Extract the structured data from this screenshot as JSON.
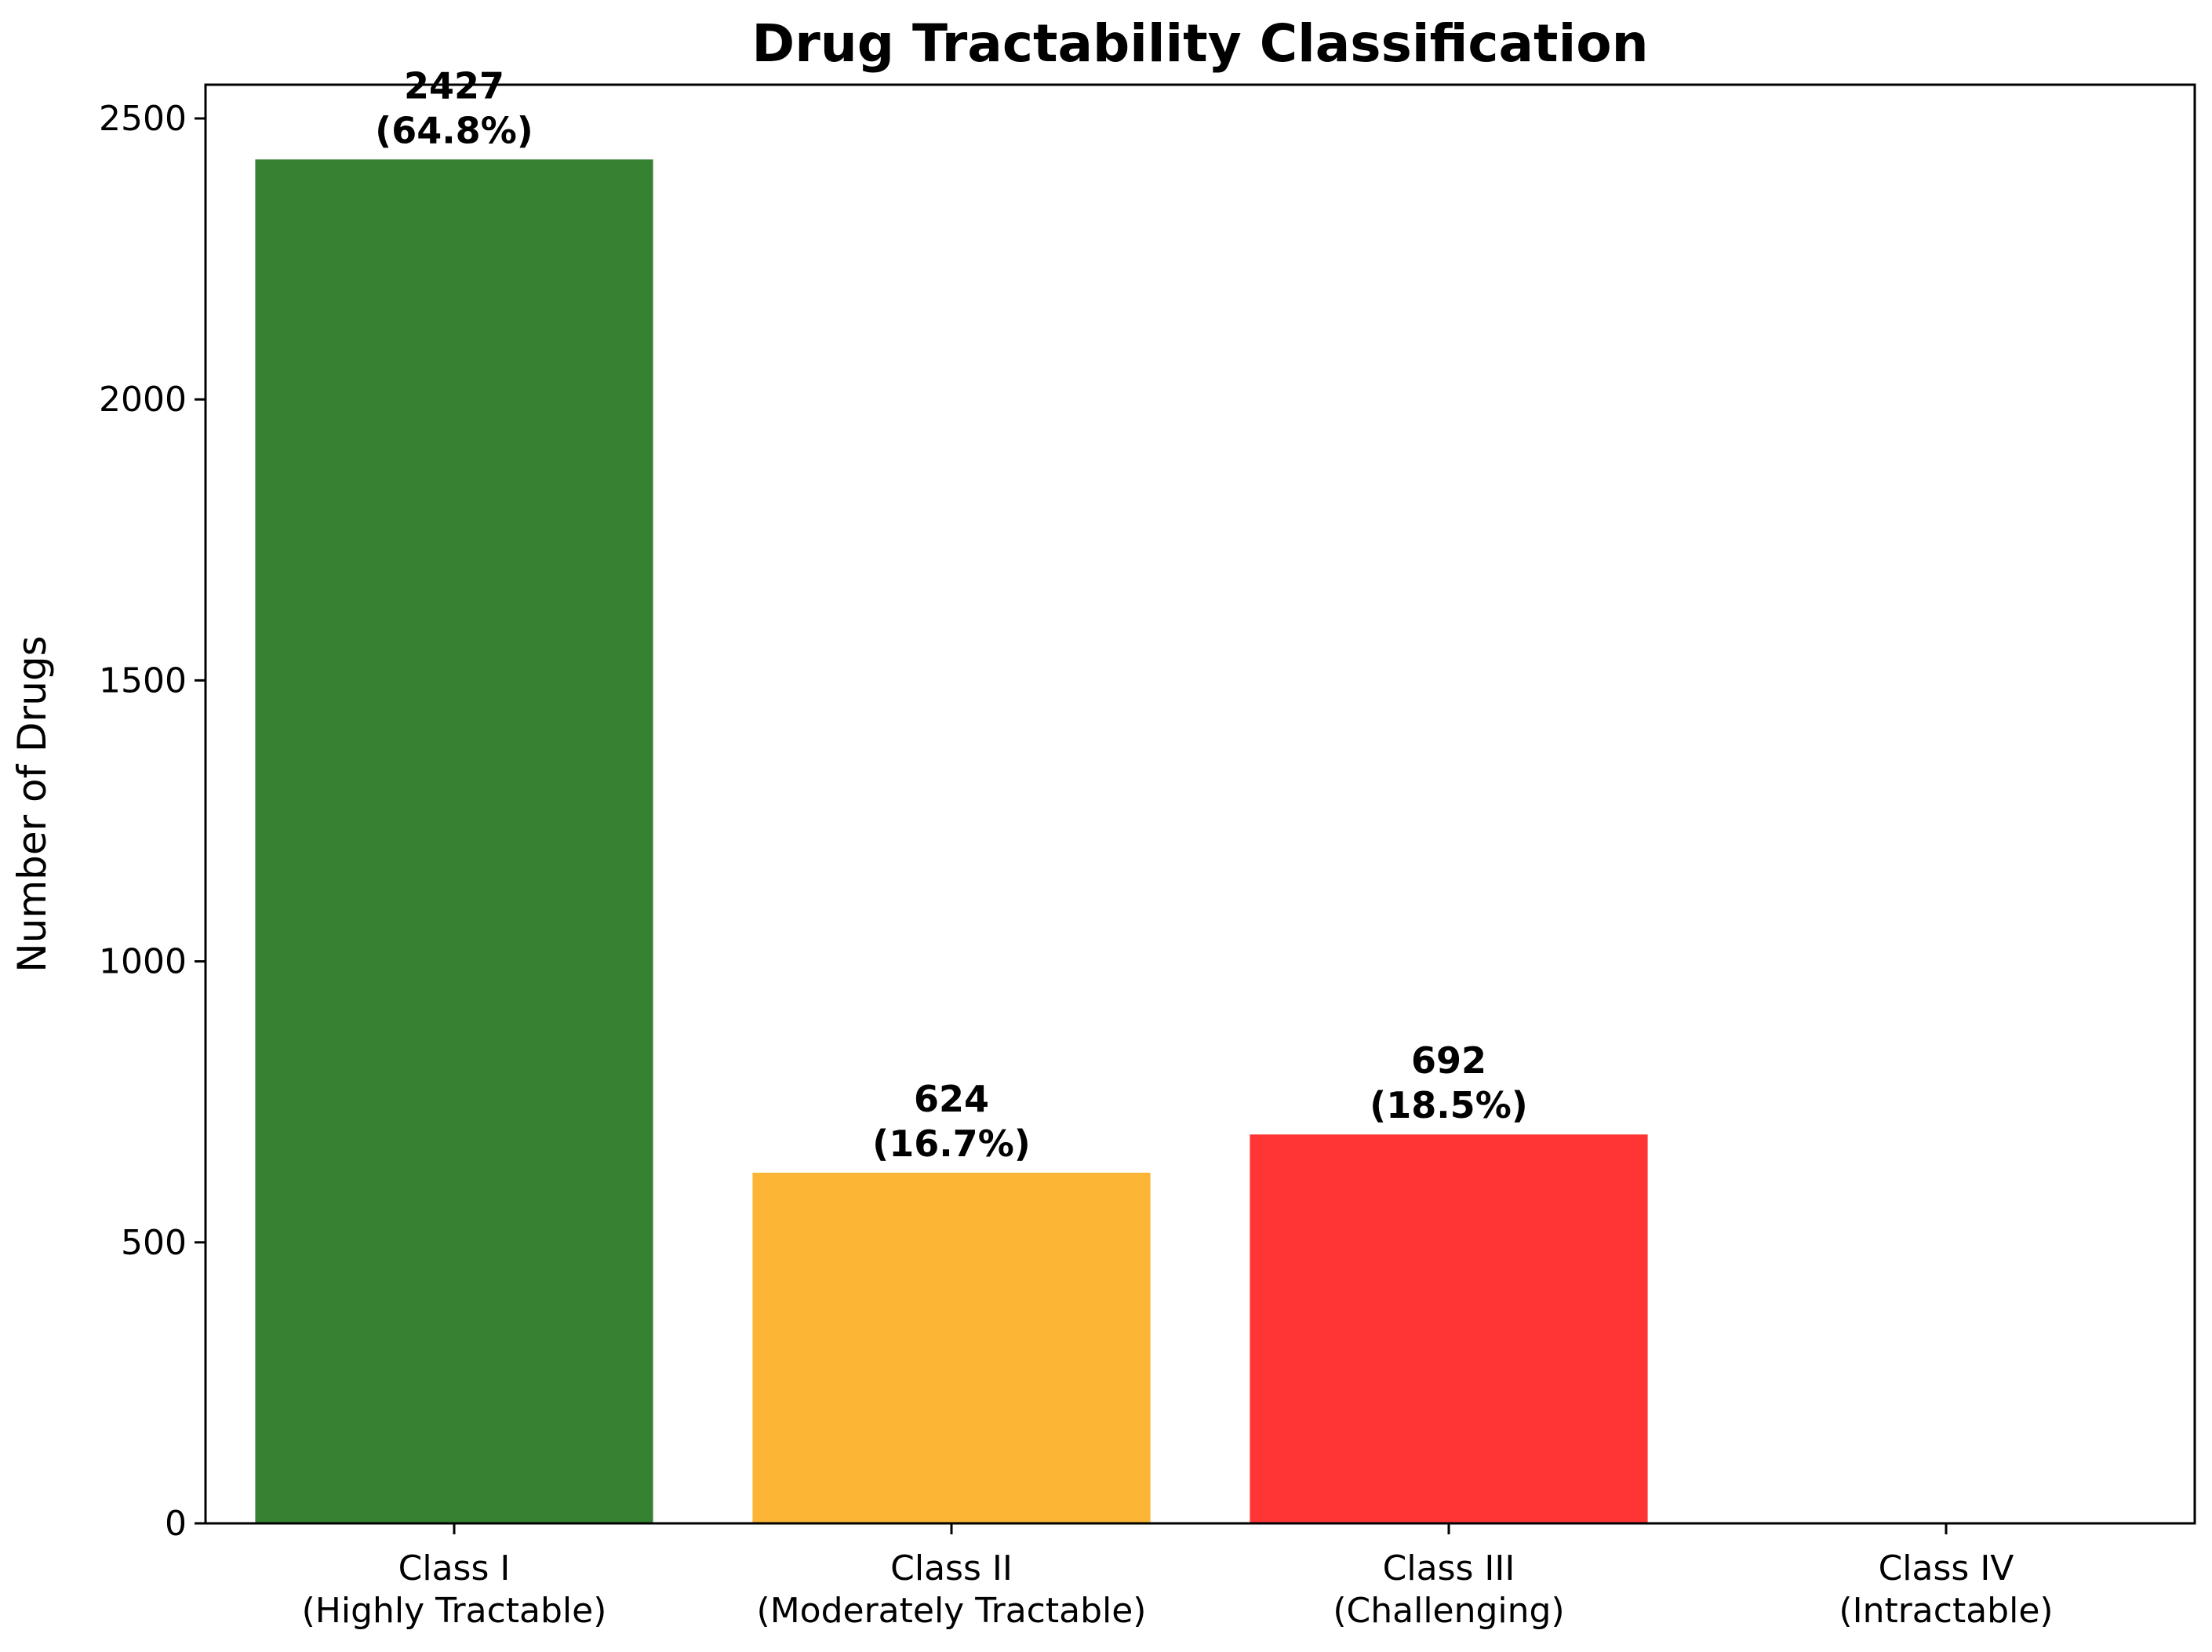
{
  "chart_data": {
    "type": "bar",
    "title": "Drug Tractability Classification",
    "xlabel": "",
    "ylabel": "Number of Drugs",
    "ylim": [
      0,
      2560
    ],
    "yticks": [
      0,
      500,
      1000,
      1500,
      2000,
      2500
    ],
    "grid": false,
    "legend": "none",
    "categories": [
      [
        "Class I",
        "(Highly Tractable)"
      ],
      [
        "Class II",
        "(Moderately Tractable)"
      ],
      [
        "Class III",
        "(Challenging)"
      ],
      [
        "Class IV",
        "(Intractable)"
      ]
    ],
    "values": [
      2427,
      624,
      692,
      0
    ],
    "data_labels": [
      [
        "2427",
        "(64.8%)"
      ],
      [
        "624",
        "(16.7%)"
      ],
      [
        "692",
        "(18.5%)"
      ],
      null
    ],
    "colors": [
      "#358233",
      "#FDB535",
      "#FF3535",
      "#9E9E9E"
    ]
  }
}
